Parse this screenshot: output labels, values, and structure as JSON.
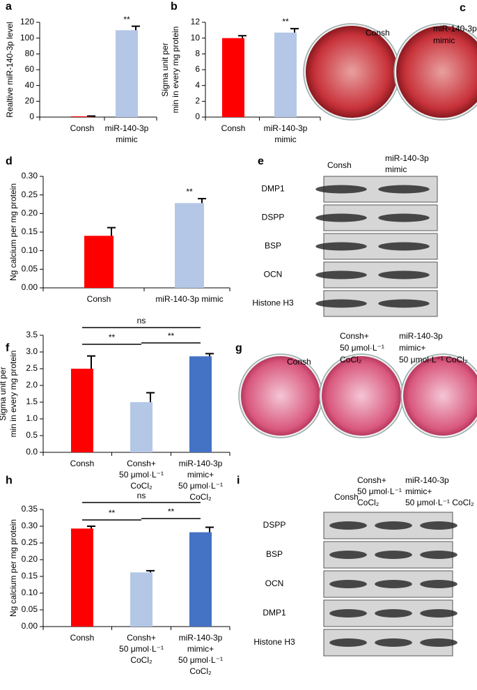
{
  "chart_data": [
    {
      "type": "bar",
      "panel": "a",
      "ylabel": [
        "Realtive miR-140-3p level"
      ],
      "categories": [
        [
          "Consh"
        ],
        [
          "miR-140-3p",
          "mimic"
        ]
      ],
      "values": [
        1,
        110
      ],
      "errors": [
        0.3,
        5
      ],
      "colors": [
        "#ff0000",
        "#b4c7e7"
      ],
      "ylim": [
        0,
        120
      ],
      "yticks": [
        0,
        20,
        40,
        60,
        80,
        100,
        120
      ],
      "annotations": [
        "**"
      ]
    },
    {
      "type": "bar",
      "panel": "b",
      "ylabel": [
        "Sigma unit per",
        "min in every mg protein"
      ],
      "categories": [
        [
          "Consh"
        ],
        [
          "miR-140-3p",
          "mimic"
        ]
      ],
      "values": [
        10,
        10.7
      ],
      "errors": [
        0.3,
        0.5
      ],
      "colors": [
        "#ff0000",
        "#b4c7e7"
      ],
      "ylim": [
        0,
        12
      ],
      "yticks": [
        0,
        2,
        4,
        6,
        8,
        10,
        12
      ],
      "annotations": [
        "**"
      ]
    },
    {
      "type": "bar",
      "panel": "d",
      "ylabel": [
        "Ng calcium per mg protein"
      ],
      "categories": [
        [
          "Consh"
        ],
        [
          "miR-140-3p mimic"
        ]
      ],
      "values": [
        0.14,
        0.228
      ],
      "errors": [
        0.022,
        0.012
      ],
      "colors": [
        "#ff0000",
        "#b4c7e7"
      ],
      "ylim": [
        0,
        0.3
      ],
      "yticks": [
        {
          "value": 0,
          "label": "0.00"
        },
        0.05,
        {
          "value": 0.1,
          "label": "0.10"
        },
        0.15,
        {
          "value": 0.2,
          "label": "0.20"
        },
        0.25,
        {
          "value": 0.3,
          "label": "0.30"
        }
      ],
      "annotations": [
        "**"
      ]
    },
    {
      "type": "bar",
      "panel": "f",
      "ylabel": [
        "Sigma unit per",
        "min in every mg protein"
      ],
      "categories": [
        [
          "Consh"
        ],
        [
          "Consh+",
          "50 μmol·L⁻¹",
          "CoCl₂"
        ],
        [
          "miR-140-3p",
          "mimic+",
          "50 μmol·L⁻¹",
          "CoCl₂"
        ]
      ],
      "values": [
        2.5,
        1.5,
        2.87
      ],
      "errors": [
        0.38,
        0.28,
        0.08
      ],
      "colors": [
        "#ff0000",
        "#b4c7e7",
        "#4472c4"
      ],
      "ylim": [
        0,
        3.5
      ],
      "yticks": [
        {
          "value": 0,
          "label": "0.0"
        },
        0.5,
        {
          "value": 1,
          "label": "1.0"
        },
        1.5,
        {
          "value": 2,
          "label": "2.0"
        },
        2.5,
        {
          "value": 3,
          "label": "3.0"
        },
        3.5
      ],
      "annotations": [
        "ns",
        "**",
        "**"
      ]
    },
    {
      "type": "bar",
      "panel": "h",
      "ylabel": [
        "Ng calcium per mg protein"
      ],
      "categories": [
        [
          "Consh"
        ],
        [
          "Consh+",
          "50 μmol·L⁻¹",
          "CoCl₂"
        ],
        [
          "miR-140-3p",
          "mimic+",
          "50 μmol·L⁻¹",
          "CoCl₂"
        ]
      ],
      "values": [
        0.293,
        0.162,
        0.282
      ],
      "errors": [
        0.007,
        0.005,
        0.015
      ],
      "colors": [
        "#ff0000",
        "#b4c7e7",
        "#4472c4"
      ],
      "ylim": [
        0,
        0.35
      ],
      "yticks": [
        {
          "value": 0,
          "label": "0.00"
        },
        0.05,
        {
          "value": 0.1,
          "label": "0.10"
        },
        0.15,
        {
          "value": 0.2,
          "label": "0.20"
        },
        0.25,
        {
          "value": 0.3,
          "label": "0.30"
        },
        0.35
      ],
      "annotations": [
        "ns",
        "**",
        "**"
      ]
    }
  ],
  "figures": [
    {
      "panel": "c",
      "captions": [
        [
          "Consh"
        ],
        [
          "miR-140-3p",
          "mimic"
        ]
      ]
    },
    {
      "panel": "g",
      "captions": [
        [
          "Consh"
        ],
        [
          "Consh+",
          "50 μmol·L⁻¹",
          "CoCl₂"
        ],
        [
          "miR-140-3p",
          "mimic+",
          "50 μmol·L⁻¹ CoCl₂"
        ]
      ]
    }
  ],
  "blots": [
    {
      "panel": "e",
      "columns": [
        [
          "Consh"
        ],
        [
          "miR-140-3p",
          "mimic"
        ]
      ],
      "rows": [
        "DMP1",
        "DSPP",
        "BSP",
        "OCN",
        "Histone H3"
      ]
    },
    {
      "panel": "i",
      "columns": [
        [
          "Consh"
        ],
        [
          "Consh+",
          "50 μmol·L⁻¹",
          "CoCl₂"
        ],
        [
          "miR-140-3p",
          "mimic+",
          "50 μmol·L⁻¹ CoCl₂"
        ]
      ],
      "rows": [
        "DSPP",
        "BSP",
        "OCN",
        "DMP1",
        "Histone H3"
      ]
    }
  ]
}
